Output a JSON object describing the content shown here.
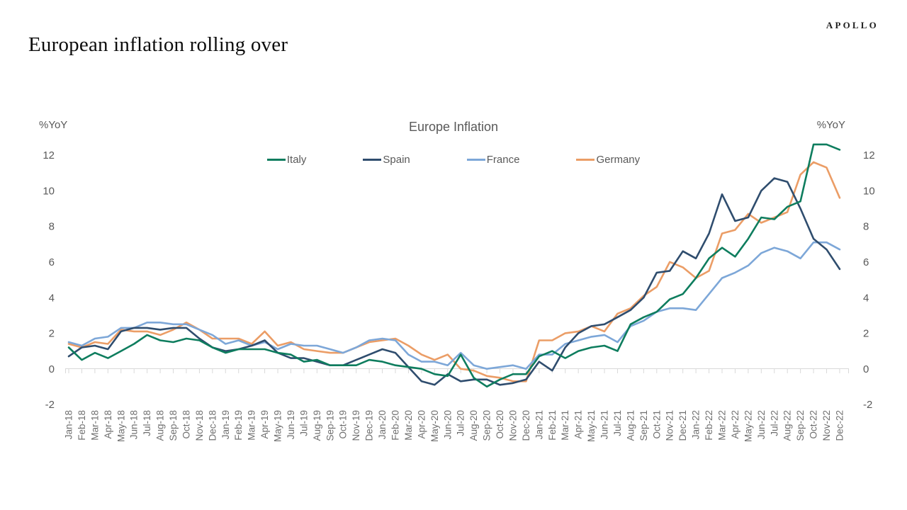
{
  "brand": "APOLLO",
  "page_title": "European inflation rolling over",
  "axis_unit_left": "%YoY",
  "axis_unit_right": "%YoY",
  "chart_data": {
    "type": "line",
    "title": "Europe Inflation",
    "ylabel_left": "%YoY",
    "ylabel_right": "%YoY",
    "ylim": [
      -2,
      13
    ],
    "yticks": [
      -2,
      0,
      2,
      4,
      6,
      8,
      10,
      12
    ],
    "grid": false,
    "legend_position": "top-center",
    "axis_color": "#d9d9d9",
    "tick_label_color": "#595959",
    "x_label_color": "#6f6f6f",
    "x": [
      "Jan-18",
      "Feb-18",
      "Mar-18",
      "Apr-18",
      "May-18",
      "Jun-18",
      "Jul-18",
      "Aug-18",
      "Sep-18",
      "Oct-18",
      "Nov-18",
      "Dec-18",
      "Jan-19",
      "Feb-19",
      "Mar-19",
      "Apr-19",
      "May-19",
      "Jun-19",
      "Jul-19",
      "Aug-19",
      "Sep-19",
      "Oct-19",
      "Nov-19",
      "Dec-19",
      "Jan-20",
      "Feb-20",
      "Mar-20",
      "Apr-20",
      "May-20",
      "Jun-20",
      "Jul-20",
      "Aug-20",
      "Sep-20",
      "Oct-20",
      "Nov-20",
      "Dec-20",
      "Jan-21",
      "Feb-21",
      "Mar-21",
      "Apr-21",
      "May-21",
      "Jun-21",
      "Jul-21",
      "Aug-21",
      "Sep-21",
      "Oct-21",
      "Nov-21",
      "Dec-21",
      "Jan-22",
      "Feb-22",
      "Mar-22",
      "Apr-22",
      "May-22",
      "Jun-22",
      "Jul-22",
      "Aug-22",
      "Sep-22",
      "Oct-22",
      "Nov-22",
      "Dec-22"
    ],
    "series": [
      {
        "name": "Italy",
        "color": "#0e7d5e",
        "values": [
          1.2,
          0.5,
          0.9,
          0.6,
          1.0,
          1.4,
          1.9,
          1.6,
          1.5,
          1.7,
          1.6,
          1.2,
          0.9,
          1.1,
          1.1,
          1.1,
          0.9,
          0.8,
          0.4,
          0.5,
          0.2,
          0.2,
          0.2,
          0.5,
          0.4,
          0.2,
          0.1,
          0.0,
          -0.3,
          -0.4,
          0.8,
          -0.5,
          -1.0,
          -0.6,
          -0.3,
          -0.3,
          0.7,
          1.0,
          0.6,
          1.0,
          1.2,
          1.3,
          1.0,
          2.5,
          2.9,
          3.2,
          3.9,
          4.2,
          5.1,
          6.2,
          6.8,
          6.3,
          7.3,
          8.5,
          8.4,
          9.1,
          9.4,
          12.6,
          12.6,
          12.3
        ]
      },
      {
        "name": "Spain",
        "color": "#2f4d6e",
        "values": [
          0.7,
          1.2,
          1.3,
          1.1,
          2.1,
          2.3,
          2.3,
          2.2,
          2.3,
          2.3,
          1.7,
          1.2,
          1.0,
          1.1,
          1.3,
          1.6,
          0.9,
          0.6,
          0.6,
          0.4,
          0.2,
          0.2,
          0.5,
          0.8,
          1.1,
          0.9,
          0.1,
          -0.7,
          -0.9,
          -0.3,
          -0.7,
          -0.6,
          -0.6,
          -0.9,
          -0.8,
          -0.6,
          0.4,
          -0.1,
          1.2,
          2.0,
          2.4,
          2.5,
          2.9,
          3.3,
          4.0,
          5.4,
          5.5,
          6.6,
          6.2,
          7.6,
          9.8,
          8.3,
          8.5,
          10.0,
          10.7,
          10.5,
          9.0,
          7.3,
          6.7,
          5.6
        ]
      },
      {
        "name": "France",
        "color": "#7da7d8",
        "values": [
          1.5,
          1.3,
          1.7,
          1.8,
          2.3,
          2.3,
          2.6,
          2.6,
          2.5,
          2.5,
          2.2,
          1.9,
          1.4,
          1.6,
          1.3,
          1.5,
          1.1,
          1.4,
          1.3,
          1.3,
          1.1,
          0.9,
          1.2,
          1.6,
          1.7,
          1.6,
          0.8,
          0.4,
          0.4,
          0.2,
          0.9,
          0.2,
          0.0,
          0.1,
          0.2,
          0.0,
          0.8,
          0.8,
          1.4,
          1.6,
          1.8,
          1.9,
          1.5,
          2.4,
          2.7,
          3.2,
          3.4,
          3.4,
          3.3,
          4.2,
          5.1,
          5.4,
          5.8,
          6.5,
          6.8,
          6.6,
          6.2,
          7.1,
          7.1,
          6.7
        ]
      },
      {
        "name": "Germany",
        "color": "#eb9d66",
        "values": [
          1.4,
          1.2,
          1.5,
          1.4,
          2.2,
          2.1,
          2.1,
          1.9,
          2.2,
          2.6,
          2.2,
          1.7,
          1.7,
          1.7,
          1.4,
          2.1,
          1.3,
          1.5,
          1.1,
          1.0,
          0.9,
          0.9,
          1.2,
          1.5,
          1.6,
          1.7,
          1.3,
          0.8,
          0.5,
          0.8,
          0.0,
          -0.1,
          -0.4,
          -0.5,
          -0.7,
          -0.7,
          1.6,
          1.6,
          2.0,
          2.1,
          2.4,
          2.1,
          3.1,
          3.4,
          4.1,
          4.6,
          6.0,
          5.7,
          5.1,
          5.5,
          7.6,
          7.8,
          8.7,
          8.2,
          8.5,
          8.8,
          10.9,
          11.6,
          11.3,
          9.6
        ]
      }
    ]
  }
}
